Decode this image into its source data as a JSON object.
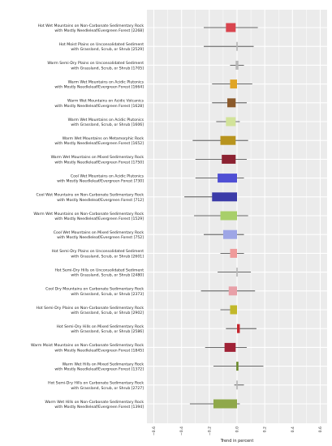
{
  "chart_data": {
    "type": "box",
    "xlabel": "Trend in percent",
    "xlim": [
      -0.65,
      0.65
    ],
    "xticks": [
      -0.6,
      -0.4,
      -0.2,
      0.0,
      0.2,
      0.4,
      0.6
    ],
    "xtick_labels": [
      "−0.6",
      "−0.4",
      "−0.2",
      "0.0",
      "0.2",
      "0.4",
      "0.6"
    ],
    "grid": true,
    "categories": [
      {
        "line1": "Hot Wet Mountains on Non-Carbonate Sedimentary Rock",
        "line2": "with Mostly Needleleaf/Evergreen Forest [2268]",
        "whisker_low": -0.24,
        "q1": -0.08,
        "q3": -0.01,
        "whisker_high": 0.15,
        "color": "#d9454f"
      },
      {
        "line1": "Hot Moist Plains on Unconsolidated Sediment",
        "line2": "with Grassland, Scrub, or Shrub [2529]",
        "whisker_low": -0.24,
        "q1": -0.005,
        "q3": 0.005,
        "whisker_high": 0.12,
        "color": "#b8b8b8"
      },
      {
        "line1": "Warm Semi-Dry Plains on Unconsolidated Sediment",
        "line2": "with Grassland, Scrub, or Shrub [1705]",
        "whisker_low": -0.05,
        "q1": -0.01,
        "q3": 0.01,
        "whisker_high": 0.05,
        "color": "#b8b8b8"
      },
      {
        "line1": "Warm Wet Mountains on Acidic Plutonics",
        "line2": "with Mostly Needleleaf/Evergreen Forest [1664]",
        "whisker_low": -0.18,
        "q1": -0.05,
        "q3": 0.0,
        "whisker_high": 0.11,
        "color": "#e0a526"
      },
      {
        "line1": "Warm Wet Mountains on Acidic Volcanics",
        "line2": "with Mostly Needleleaf/Evergreen Forest [1628]",
        "whisker_low": -0.18,
        "q1": -0.07,
        "q3": -0.01,
        "whisker_high": 0.07,
        "color": "#8b5a2b"
      },
      {
        "line1": "Warm Wet Mountains on Acidic Plutonics",
        "line2": "with Grassland, Scrub, or Shrub [1606]",
        "whisker_low": -0.15,
        "q1": -0.08,
        "q3": -0.01,
        "whisker_high": 0.02,
        "color": "#d2e39a"
      },
      {
        "line1": "Warm Wet Mountains on Metamorphic Rock",
        "line2": "with Mostly Needleleaf/Evergreen Forest [1652]",
        "whisker_low": -0.32,
        "q1": -0.12,
        "q3": -0.01,
        "whisker_high": 0.08,
        "color": "#b8941e"
      },
      {
        "line1": "Warm Wet Mountains on Mixed Sedimentary Rock",
        "line2": "with Mostly Needleleaf/Evergreen Forest [1750]",
        "whisker_low": -0.3,
        "q1": -0.11,
        "q3": -0.01,
        "whisker_high": 0.07,
        "color": "#8c2232"
      },
      {
        "line1": "Cool Wet Mountains on Acidic Plutonics",
        "line2": "with Mostly Needleleaf/Evergreen Forest [730]",
        "whisker_low": -0.3,
        "q1": -0.14,
        "q3": 0.0,
        "whisker_high": 0.05,
        "color": "#4f4fd4"
      },
      {
        "line1": "Cool Wet Mountains on Non-Carbonate Sedimentary Rock",
        "line2": "with Mostly Needleleaf/Evergreen Forest [712]",
        "whisker_low": -0.38,
        "q1": -0.18,
        "q3": 0.0,
        "whisker_high": 0.0,
        "color": "#3b3ba8"
      },
      {
        "line1": "Warm Wet Mountains on Non-Carbonate Sedimentary Rock",
        "line2": "with Mostly Needleleaf/Evergreen Forest [1529]",
        "whisker_low": -0.31,
        "q1": -0.12,
        "q3": 0.0,
        "whisker_high": 0.08,
        "color": "#a8cf6a"
      },
      {
        "line1": "Cool Wet Mountains on Mixed Sedimentary Rock",
        "line2": "with Mostly Needleleaf/Evergreen Forest [752]",
        "whisker_low": -0.24,
        "q1": -0.1,
        "q3": 0.0,
        "whisker_high": 0.05,
        "color": "#9ea6e6"
      },
      {
        "line1": "Hot Semi-Dry Plains on Unconsolidated Sediment",
        "line2": "with Grassland, Scrub, or Shrub [2601]",
        "whisker_low": -0.12,
        "q1": -0.05,
        "q3": 0.0,
        "whisker_high": 0.05,
        "color": "#ef9a9a"
      },
      {
        "line1": "Hot Semi-Dry Hills on Unconsolidated Sediment",
        "line2": "with Grassland, Scrub, or Shrub [2480]",
        "whisker_low": -0.14,
        "q1": -0.005,
        "q3": 0.005,
        "whisker_high": 0.1,
        "color": "#b8b8b8"
      },
      {
        "line1": "Cool Dry Mountains on Carbonate Sedimentary Rock",
        "line2": "with Grassland, Scrub, or Shrub [2373]",
        "whisker_low": -0.26,
        "q1": -0.06,
        "q3": 0.0,
        "whisker_high": 0.13,
        "color": "#e8a0a8"
      },
      {
        "line1": "Hot Semi-Dry Plains on Non-Carbonate Sedimentary Rock",
        "line2": "with Grassland, Scrub, or Shrub [2902]",
        "whisker_low": -0.12,
        "q1": -0.05,
        "q3": 0.0,
        "whisker_high": 0.0,
        "color": "#c2b82a"
      },
      {
        "line1": "Hot Semi-Dry Hills on Mixed Sedimentary Rock",
        "line2": "with Grassland, Scrub, or Shrub [2586]",
        "whisker_low": -0.08,
        "q1": 0.0,
        "q3": 0.02,
        "whisker_high": 0.14,
        "color": "#c4262e"
      },
      {
        "line1": "Warm Moist Mountains on Non-Carbonate Sedimentary Rock",
        "line2": "with Mostly Needleleaf/Evergreen Forest [1845]",
        "whisker_low": -0.23,
        "q1": -0.09,
        "q3": -0.01,
        "whisker_high": 0.07,
        "color": "#a02236"
      },
      {
        "line1": "Warm Wet Hills on Mixed Sedimentary Rock",
        "line2": "with Mostly Needleleaf/Evergreen Forest [1372]",
        "whisker_low": -0.17,
        "q1": -0.005,
        "q3": 0.01,
        "whisker_high": 0.19,
        "color": "#6a8a2a"
      },
      {
        "line1": "Hot Semi-Dry Hills on Carbonate Sedimentary Rock",
        "line2": "with Grassland, Scrub, or Shrub [2727]",
        "whisker_low": -0.02,
        "q1": -0.005,
        "q3": 0.005,
        "whisker_high": 0.05,
        "color": "#b8b8b8"
      },
      {
        "line1": "Warm Wet Hills on Non-Carbonate Sedimentary Rock",
        "line2": "with Mostly Needleleaf/Evergreen Forest [1394]",
        "whisker_low": -0.34,
        "q1": -0.17,
        "q3": 0.0,
        "whisker_high": 0.02,
        "color": "#8fa84a"
      }
    ]
  }
}
